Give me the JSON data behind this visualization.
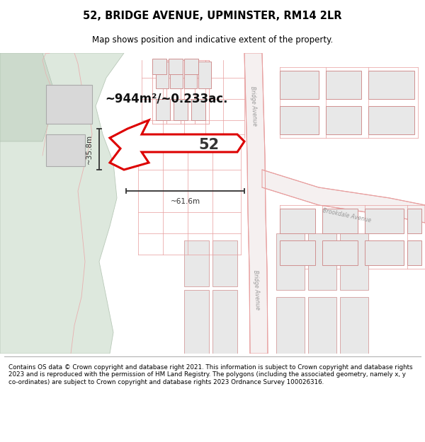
{
  "title": "52, BRIDGE AVENUE, UPMINSTER, RM14 2LR",
  "subtitle": "Map shows position and indicative extent of the property.",
  "footer": "Contains OS data © Crown copyright and database right 2021. This information is subject to Crown copyright and database rights 2023 and is reproduced with the permission of HM Land Registry. The polygons (including the associated geometry, namely x, y co-ordinates) are subject to Crown copyright and database rights 2023 Ordnance Survey 100026316.",
  "area_label": "~944m²/~0.233ac.",
  "number_label": "52",
  "dim_width": "~61.6m",
  "dim_height": "~35.8m",
  "road_label_bridge_top": "Bridge Avenue",
  "road_label_bridge_bot": "Bridge Avenue",
  "road_label_brookdale": "Brookdale Avenue",
  "map_bg": "#eef2ee",
  "green_left": "#dce8dc",
  "plot_fill": "#ffffff",
  "plot_stroke": "#dd0000",
  "map_line_color": "#e8a0a0",
  "bldg_fill": "#e8e8e8",
  "bldg_edge": "#d09090"
}
